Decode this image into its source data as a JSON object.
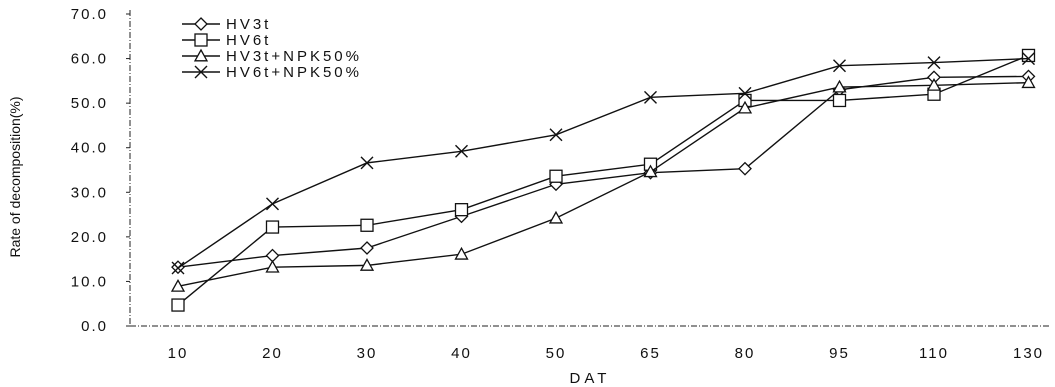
{
  "chart_data": {
    "type": "line",
    "title": "",
    "xlabel": "DAT",
    "ylabel": "Rate of decomposition(%)",
    "categories": [
      "10",
      "20",
      "30",
      "40",
      "50",
      "65",
      "80",
      "95",
      "110",
      "130"
    ],
    "ylim": [
      0,
      70
    ],
    "yticks": [
      "0.0",
      "10.0",
      "20.0",
      "30.0",
      "40.0",
      "50.0",
      "60.0",
      "70.0"
    ],
    "grid": false,
    "legend_position": "top-left",
    "series": [
      {
        "name": "HV3t",
        "marker": "diamond",
        "values": [
          13.2,
          15.8,
          17.5,
          24.6,
          31.8,
          34.4,
          35.3,
          53.0,
          55.8,
          56.0
        ]
      },
      {
        "name": "HV6t",
        "marker": "square",
        "values": [
          4.7,
          22.2,
          22.6,
          26.1,
          33.6,
          36.3,
          50.6,
          50.6,
          52.0,
          60.7
        ]
      },
      {
        "name": "HV3t+NPK50%",
        "marker": "triangle",
        "values": [
          8.9,
          13.2,
          13.6,
          16.1,
          24.2,
          34.6,
          48.9,
          53.6,
          54.0,
          54.6
        ]
      },
      {
        "name": "HV6t+NPK50%",
        "marker": "x",
        "values": [
          13.0,
          27.4,
          36.6,
          39.2,
          42.9,
          51.3,
          52.2,
          58.4,
          59.1,
          60.0
        ]
      }
    ]
  }
}
